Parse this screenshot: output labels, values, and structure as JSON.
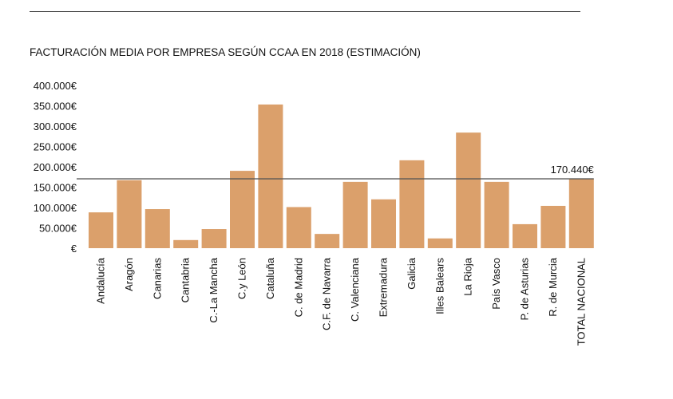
{
  "chart_data": {
    "type": "bar",
    "title": "FACTURACIÓN MEDIA POR EMPRESA SEGÚN CCAA EN 2018 (ESTIMACIÓN)",
    "xlabel": "",
    "ylabel": "",
    "ylim": [
      0,
      400000
    ],
    "yticks": [
      0,
      50000,
      100000,
      150000,
      200000,
      250000,
      300000,
      350000,
      400000
    ],
    "ytick_labels": [
      "€",
      "50.000€",
      "100.000€",
      "150.000€",
      "200.000€",
      "250.000€",
      "300.000€",
      "350.000€",
      "400.000€"
    ],
    "categories": [
      "Andalucía",
      "Aragón",
      "Canarias",
      "Cantabria",
      "C.-La Mancha",
      "C.y León",
      "Cataluña",
      "C. de Madrid",
      "C.F. de Navarra",
      "C. Valenciana",
      "Extremadura",
      "Galicia",
      "Illes Balears",
      "La Rioja",
      "País Vasco",
      "P. de Asturias",
      "R. de Murcia",
      "TOTAL NACIONAL"
    ],
    "values": [
      88000,
      167000,
      96000,
      20000,
      47000,
      190000,
      353000,
      101000,
      35000,
      163000,
      120000,
      216000,
      24000,
      284000,
      163000,
      59000,
      104000,
      170440
    ],
    "reference_line": {
      "value": 170440,
      "label": "170.440€"
    },
    "grid": false,
    "bar_color": "#dba06b",
    "line_color": "#555555"
  }
}
